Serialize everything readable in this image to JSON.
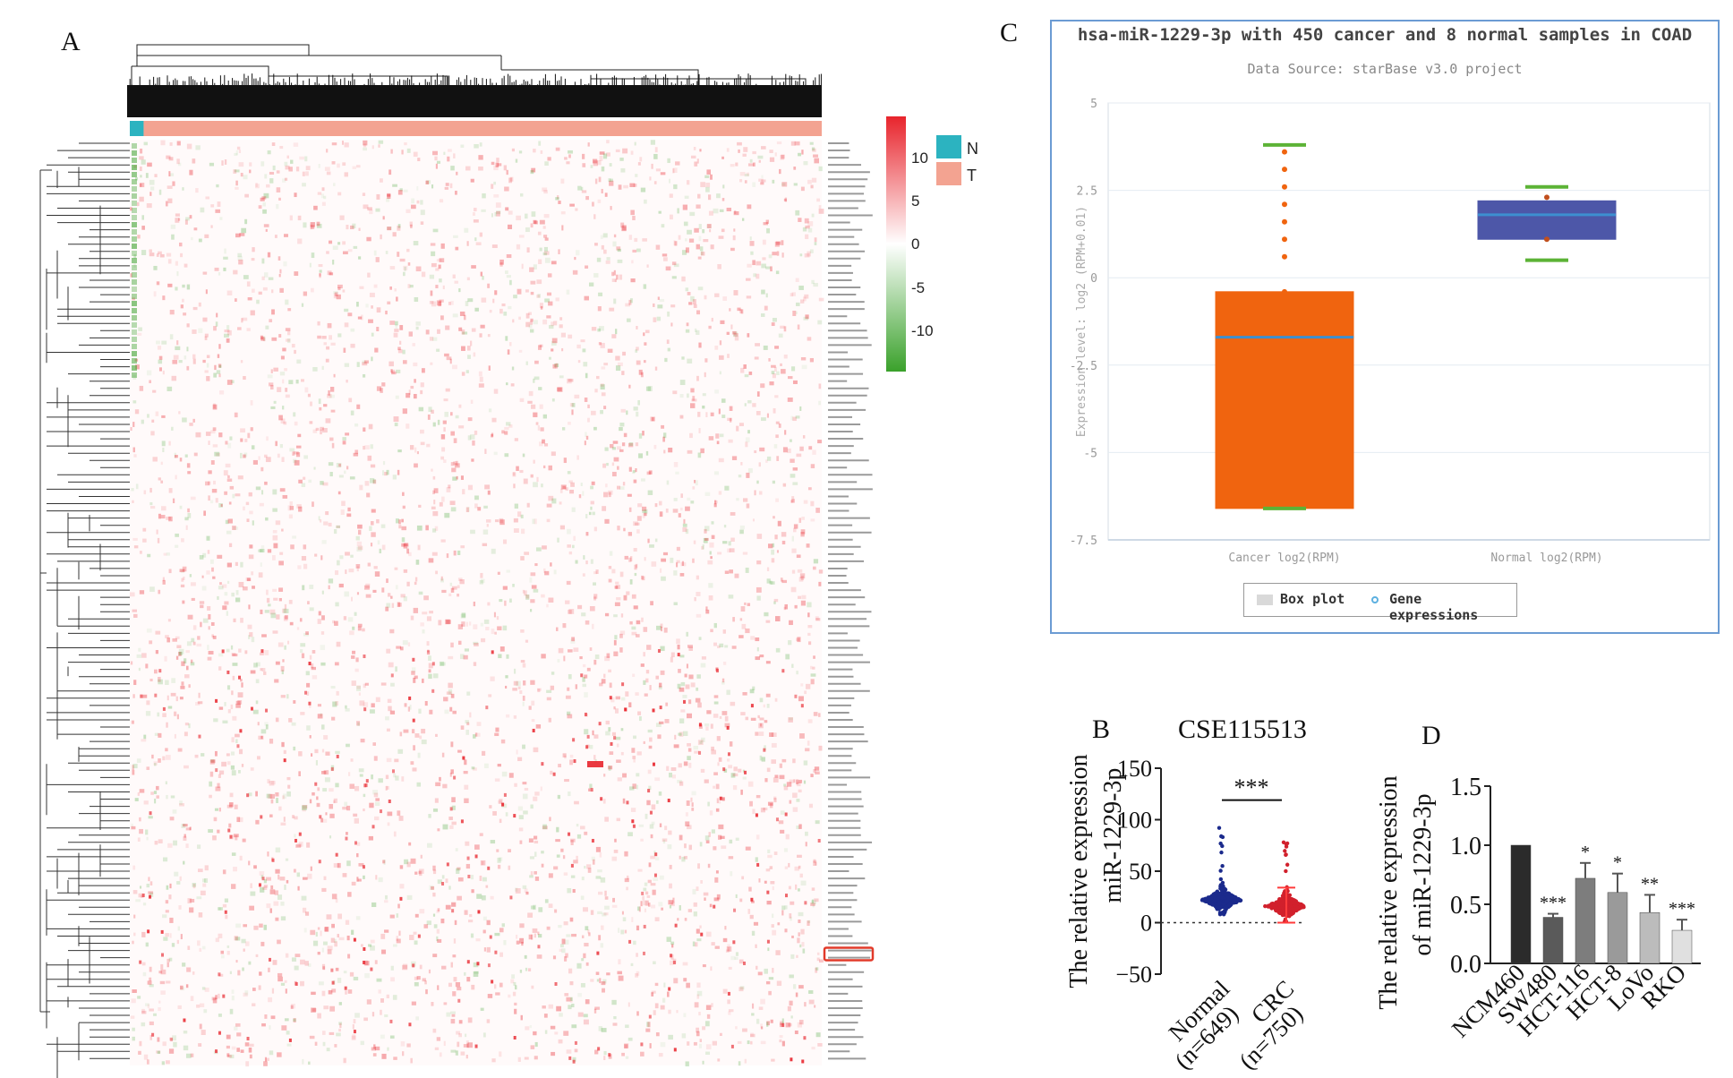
{
  "panels": {
    "a": "A",
    "b": "B",
    "c": "C",
    "d": "D"
  },
  "colors": {
    "heat_pos": "#e8242c",
    "heat_neg": "#3aa12b",
    "heat_mid": "#ffffff",
    "group_n": "#2cb3c0",
    "group_t": "#f3a391",
    "cancer_box": "#f0640f",
    "normal_box": "#4d57a8",
    "median_line": "#3d8fd0",
    "whisker": "#5cb336",
    "frame": "#6b9bd3",
    "normal_dots": "#1b2a8c",
    "crc_dots": "#d1202c",
    "bar_colors": [
      "#2b2b2b",
      "#5a5a5a",
      "#7d7d7d",
      "#9a9a9a",
      "#bcbcbc",
      "#e0e0e0"
    ]
  },
  "chart_data": [
    {
      "type": "heatmap",
      "panel": "A",
      "legend": {
        "ticks": [
          10,
          5,
          0,
          -5,
          -10
        ],
        "groups": [
          "N",
          "T"
        ]
      },
      "groups": {
        "N_fraction": 0.02,
        "T_fraction": 0.98
      },
      "highlighted_row_fraction": 0.66
    },
    {
      "type": "box",
      "panel": "C",
      "title": "hsa-miR-1229-3p with 450 cancer and 8 normal samples in COAD",
      "subtitle": "Data Source: starBase v3.0 project",
      "ylabel": "Expression level: log2 (RPM+0.01)",
      "ylim": [
        -7.5,
        5
      ],
      "yticks": [
        "5",
        "2.5",
        "0",
        "-2.5",
        "-5",
        "-7.5"
      ],
      "categories": [
        "Cancer log2(RPM)",
        "Normal log2(RPM)"
      ],
      "boxes": [
        {
          "name": "Cancer log2(RPM)",
          "min": -6.6,
          "q1": -6.6,
          "median": -1.7,
          "q3": -0.4,
          "max": 3.8,
          "outliers": [
            3.6,
            3.1,
            2.6,
            2.1,
            1.6,
            1.1,
            0.6,
            -0.4
          ]
        },
        {
          "name": "Normal log2(RPM)",
          "min": 0.5,
          "q1": 1.1,
          "median": 1.8,
          "q3": 2.2,
          "max": 2.6,
          "outliers": [
            2.3,
            1.1
          ]
        }
      ],
      "legend": [
        "Box plot",
        "Gene expressions"
      ]
    },
    {
      "type": "scatter",
      "panel": "B",
      "title": "CSE115513",
      "ylabel": "The relative expression miR-1229-3p",
      "ylabel_lines": [
        "The relative expression",
        "miR-1229-3p"
      ],
      "ylim": [
        -50,
        150
      ],
      "yticks": [
        "150",
        "100",
        "50",
        "0",
        "−50"
      ],
      "categories": [
        "Normal (n=649)",
        "CRC (n=750)"
      ],
      "category_lines": [
        [
          "Normal",
          "(n=649)"
        ],
        [
          "CRC",
          "(n=750)"
        ]
      ],
      "series": [
        {
          "name": "Normal",
          "center": 22,
          "spread_low": 10,
          "spread_high": 40,
          "max_outlier": 92
        },
        {
          "name": "CRC",
          "center": 16,
          "spread_low": 4,
          "spread_high": 35,
          "max_outlier": 78,
          "mean": 17,
          "sd": 17
        }
      ],
      "significance": "***"
    },
    {
      "type": "bar",
      "panel": "D",
      "ylabel": "The relative expression of miR-1229-3p",
      "ylabel_lines": [
        "The relative expression",
        "of miR-1229-3p"
      ],
      "ylim": [
        0,
        1.5
      ],
      "yticks": [
        "1.5",
        "1.0",
        "0.5",
        "0.0"
      ],
      "categories": [
        "NCM460",
        "SW480",
        "HCT-116",
        "HCT-8",
        "LoVo",
        "RKO"
      ],
      "values": [
        1.0,
        0.39,
        0.72,
        0.6,
        0.43,
        0.28
      ],
      "errors": [
        0,
        0.03,
        0.13,
        0.16,
        0.15,
        0.09
      ],
      "significance": [
        "",
        "***",
        "*",
        "*",
        "**",
        "***"
      ]
    }
  ]
}
